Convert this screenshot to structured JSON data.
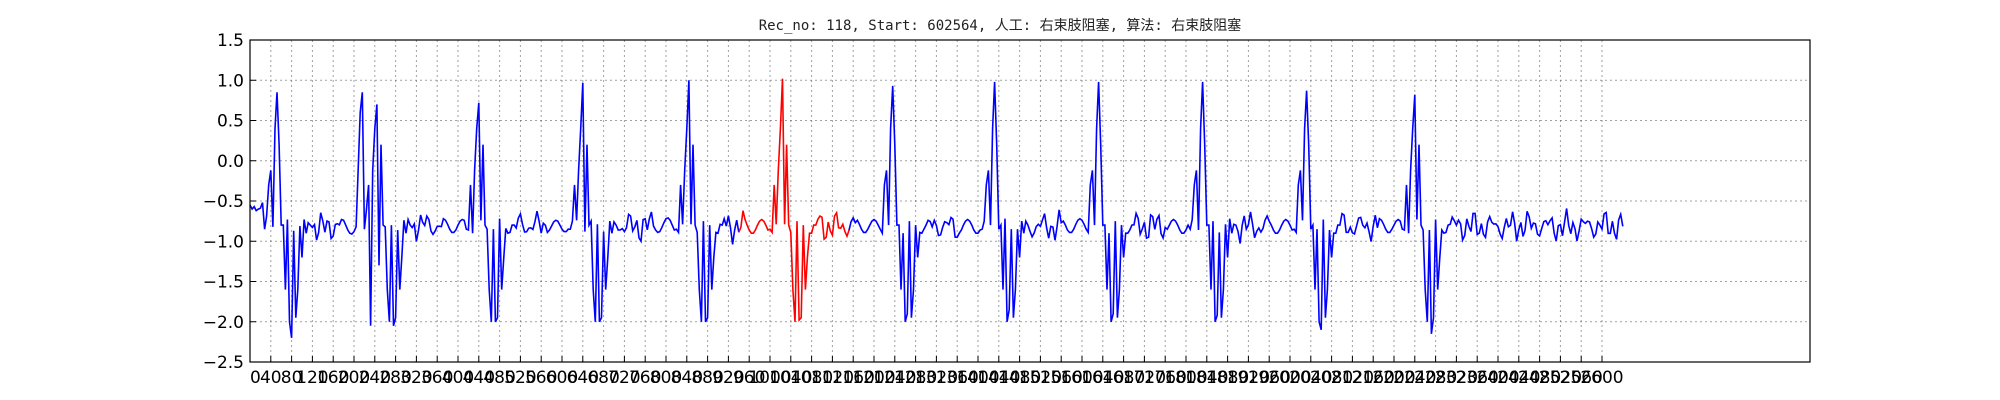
{
  "chart_data": {
    "type": "line",
    "title": "Rec_no: 118, Start: 602564, 人工: 右束肢阻塞, 算法: 右束肢阻塞",
    "xlabel": "",
    "ylabel": "",
    "xlim": [
      0,
      3000
    ],
    "ylim": [
      -2.5,
      1.5
    ],
    "grid": true,
    "yticks": [
      -2.5,
      -2.0,
      -1.5,
      -1.0,
      -0.5,
      0.0,
      0.5,
      1.0,
      1.5
    ],
    "ytick_labels": [
      "−2.5",
      "−2.0",
      "−1.5",
      "−1.0",
      "−0.5",
      "0.0",
      "0.5",
      "1.0",
      "1.5"
    ],
    "xticks": [
      0,
      40,
      80,
      120,
      160,
      200,
      240,
      280,
      320,
      360,
      400,
      440,
      480,
      520,
      560,
      600,
      640,
      680,
      720,
      760,
      800,
      840,
      880,
      920,
      960,
      1000,
      1040,
      1080,
      1120,
      1160,
      1200,
      1240,
      1280,
      1320,
      1360,
      1400,
      1440,
      1480,
      1520,
      1560,
      1600,
      1640,
      1680,
      1720,
      1760,
      1800,
      1840,
      1880,
      1920,
      1960,
      2000,
      2040,
      2080,
      2120,
      2160,
      2200,
      2240,
      2280,
      2320,
      2360,
      2400,
      2440,
      2480,
      2520,
      2560,
      2600
    ],
    "xtick_labels": [
      "0",
      "40",
      "80",
      "120",
      "160",
      "200",
      "240",
      "280",
      "320",
      "360",
      "400",
      "440",
      "480",
      "520",
      "560",
      "600",
      "640",
      "680",
      "720",
      "760",
      "800",
      "840",
      "880",
      "920",
      "960",
      "1000",
      "1040",
      "1080",
      "1120",
      "1160",
      "1200",
      "1240",
      "1280",
      "1320",
      "1360",
      "1400",
      "1440",
      "1480",
      "1520",
      "1560",
      "1600",
      "1640",
      "1680",
      "1720",
      "1760",
      "1800",
      "1840",
      "1880",
      "1920",
      "1960",
      "2000",
      "2040",
      "2080",
      "2120",
      "2160",
      "2200",
      "2240",
      "2280",
      "2320",
      "2360",
      "2400",
      "2440",
      "2480",
      "2520",
      "2560",
      "2600"
    ],
    "x_step": 4,
    "beats_x": [
      50,
      245,
      440,
      640,
      845,
      1025,
      1235,
      1430,
      1630,
      1830,
      2030,
      2240
    ],
    "highlight": {
      "x_range": [
        940,
        1150
      ],
      "color": "#ff0000"
    },
    "series": [
      {
        "color": "#0000ff",
        "values": [
          -0.55,
          -0.6,
          -0.57,
          -0.62,
          -0.6,
          -0.59,
          -0.52,
          -0.61,
          -0.69,
          -0.75,
          -0.79,
          -0.82,
          -0.84,
          -0.85,
          -0.84,
          -0.8,
          -0.75,
          -0.72,
          -0.73,
          -0.78,
          -0.83,
          -0.87,
          -0.88,
          -0.86,
          -0.81,
          -0.76,
          -0.73,
          -0.73,
          -0.77,
          -0.83,
          -0.88,
          -0.9,
          -0.88,
          -0.83,
          -0.78,
          -0.75,
          -0.76,
          -0.8,
          -0.85,
          -0.89,
          -0.89,
          -0.86,
          -0.8,
          -0.75,
          -0.73,
          -0.74,
          -0.8,
          -0.86,
          -0.9,
          -0.91,
          -0.88,
          -0.82,
          -0.1,
          0.6,
          0.85,
          0.35,
          -0.6,
          -1.5,
          -2.05,
          -2.2,
          -2.05,
          -1.7,
          -1.3,
          -1.05,
          -0.9,
          -0.82,
          -0.78,
          -0.78,
          -0.8,
          -0.84,
          -0.86,
          -0.86,
          -0.84,
          -0.79,
          -0.74,
          -0.72,
          -0.73,
          -0.78,
          -0.83,
          -0.87,
          -0.88,
          -0.84,
          -0.79,
          -0.74,
          -0.72,
          -0.73,
          -0.78,
          -0.84,
          -0.88,
          -0.89,
          -0.86,
          -0.8,
          -0.75,
          -0.72,
          -0.74,
          -0.79,
          -0.85,
          -0.89,
          -0.89,
          -0.86,
          -0.8,
          -0.75,
          -0.73,
          -0.74,
          -0.8,
          -0.86,
          -0.9,
          -0.9,
          -0.87,
          -0.81,
          -0.76,
          -0.74,
          -0.75,
          -0.8,
          -0.85,
          -0.88,
          -0.88,
          -0.85,
          -0.8,
          -0.75,
          -0.72,
          -0.73,
          -0.78,
          -0.84,
          -0.88,
          -0.89,
          -0.86,
          -0.8,
          -0.74,
          -0.71,
          -0.73,
          -0.78,
          -0.84,
          -0.88,
          -0.88,
          -0.85,
          -0.79,
          -0.74,
          -0.72,
          -0.73,
          -0.79,
          -0.85,
          -0.89,
          -0.89,
          -0.86,
          -0.81,
          -0.76,
          -0.74,
          -0.75,
          -0.8,
          -0.85,
          -0.88,
          -0.88,
          -0.85,
          -0.8,
          -0.75,
          -0.73,
          -0.74,
          -0.78,
          -0.84,
          -0.88,
          -0.88,
          -0.85,
          -0.8,
          -0.75,
          -0.73,
          -0.74,
          -0.79,
          -0.84,
          -0.88,
          -0.88,
          -0.84,
          -0.79,
          -0.75,
          -0.74,
          -0.76,
          -0.81,
          -0.86,
          -0.89,
          -0.88,
          -0.84,
          -0.78,
          -0.74,
          -0.73,
          -0.76,
          -0.82,
          -0.87,
          -0.9,
          -0.89,
          -0.84,
          -0.78,
          -0.73,
          -0.72,
          -0.75,
          -0.81,
          -0.86,
          -0.89,
          -0.88,
          -0.83,
          -0.77,
          -0.72,
          -0.71,
          -0.74,
          -0.8,
          -0.86,
          -0.89,
          -0.89,
          -0.85,
          -0.79,
          -0.74,
          -0.72,
          -0.74,
          -0.79,
          -0.85,
          -0.89,
          -0.89,
          -0.86,
          -0.8,
          -0.75,
          -0.73,
          -0.75,
          -0.8,
          -0.86,
          -0.89,
          -0.89,
          -0.85,
          -0.79,
          -0.74,
          -0.72,
          -0.74,
          -0.8,
          -0.86,
          -0.9,
          -0.9,
          -0.86,
          -0.8,
          -0.75,
          -0.73,
          -0.75,
          -0.8,
          -0.86,
          -0.9,
          -0.9,
          -0.86,
          -0.8,
          -0.75,
          -0.73,
          -0.75,
          -0.8,
          -0.86,
          -0.89,
          -0.89,
          -0.85,
          -0.79,
          -0.74,
          -0.72,
          -0.74,
          -0.79,
          -0.85,
          -0.89,
          -0.89,
          -0.85,
          -0.8,
          -0.75,
          -0.73,
          -0.75,
          -0.8,
          -0.86,
          -0.9,
          -0.9,
          -0.86,
          -0.8,
          -0.75,
          -0.73,
          -0.75,
          -0.8,
          -0.86,
          -0.9,
          -0.9,
          -0.86,
          -0.8,
          -0.75,
          -0.73,
          -0.75,
          -0.8,
          -0.86,
          -0.89,
          -0.89,
          -0.85,
          -0.79,
          -0.74,
          -0.72,
          -0.74,
          -0.79,
          -0.85,
          -0.89,
          -0.89,
          -0.85,
          -0.8,
          -0.75,
          -0.73,
          -0.75,
          -0.8,
          -0.86,
          -0.9,
          -0.9,
          -0.86,
          -0.8,
          -0.75,
          -0.73,
          -0.75,
          -0.8,
          -0.86,
          -0.9,
          -0.9,
          -0.86,
          -0.8,
          -0.75,
          -0.73,
          -0.75,
          -0.8,
          -0.86,
          -0.89,
          -0.89,
          -0.85,
          -0.79,
          -0.74,
          -0.72,
          -0.74,
          -0.79,
          -0.85,
          -0.89,
          -0.89,
          -0.85,
          -0.8,
          -0.75,
          -0.73,
          -0.75,
          -0.8,
          -0.86,
          -0.9,
          -0.9,
          -0.86,
          -0.8,
          -0.75,
          -0.73,
          -0.75,
          -0.8,
          -0.86,
          -0.9,
          -0.9,
          -0.86,
          -0.8,
          -0.75,
          -0.73,
          -0.75,
          -0.8,
          -0.86,
          -0.89,
          -0.89,
          -0.85,
          -0.79,
          -0.74,
          -0.72,
          -0.74,
          -0.79,
          -0.85,
          -0.89,
          -0.89,
          -0.85,
          -0.8,
          -0.75,
          -0.73,
          -0.75,
          -0.8,
          -0.86,
          -0.9,
          -0.9,
          -0.86,
          -0.8,
          -0.75,
          -0.73,
          -0.75,
          -0.8,
          -0.86,
          -0.9,
          -0.9,
          -0.86,
          -0.8,
          -0.75,
          -0.73,
          -0.75,
          -0.8,
          -0.86,
          -0.89,
          -0.89,
          -0.85,
          -0.79,
          -0.74,
          -0.72,
          -0.74,
          -0.79,
          -0.85,
          -0.89,
          -0.89,
          -0.85,
          -0.8,
          -0.75,
          -0.73,
          -0.75,
          -0.8,
          -0.86,
          -0.9,
          -0.9,
          -0.86,
          -0.8,
          -0.75,
          -0.73,
          -0.75,
          -0.8,
          -0.86,
          -0.9,
          -0.9,
          -0.86,
          -0.8,
          -0.75,
          -0.73,
          -0.75,
          -0.8,
          -0.86,
          -0.89,
          -0.89,
          -0.85,
          -0.79,
          -0.74,
          -0.72,
          -0.74,
          -0.79,
          -0.85,
          -0.89,
          -0.89,
          -0.85,
          -0.8,
          -0.75,
          -0.73,
          -0.75,
          -0.8,
          -0.86,
          -0.9,
          -0.9,
          -0.86,
          -0.8,
          -0.75,
          -0.73,
          -0.75,
          -0.8,
          -0.86,
          -0.9,
          -0.9,
          -0.86,
          -0.8,
          -0.75,
          -0.73,
          -0.75,
          -0.8,
          -0.86,
          -0.89,
          -0.89,
          -0.85,
          -0.79,
          -0.74,
          -0.72,
          -0.74,
          -0.79,
          -0.85,
          -0.89,
          -0.89,
          -0.85,
          -0.8,
          -0.75,
          -0.73,
          -0.75,
          -0.8,
          -0.86,
          -0.9,
          -0.9,
          -0.86,
          -0.8,
          -0.75,
          -0.73,
          -0.75,
          -0.8,
          -0.86,
          -0.9,
          -0.9,
          -0.86,
          -0.8,
          -0.75,
          -0.73,
          -0.75,
          -0.8,
          -0.86,
          -0.89,
          -0.89,
          -0.85,
          -0.79,
          -0.74,
          -0.72,
          -0.74,
          -0.79,
          -0.85,
          -0.89,
          -0.89,
          -0.85,
          -0.8,
          -0.75,
          -0.73,
          -0.75,
          -0.8,
          -0.86,
          -0.9,
          -0.9,
          -0.86,
          -0.8,
          -0.75,
          -0.73,
          -0.75,
          -0.8,
          -0.86,
          -0.9,
          -0.9,
          -0.86,
          -0.8,
          -0.75,
          -0.73,
          -0.75,
          -0.8,
          -0.86,
          -0.89,
          -0.89,
          -0.85,
          -0.79,
          -0.74,
          -0.72,
          -0.74,
          -0.79,
          -0.85,
          -0.89,
          -0.89,
          -0.85,
          -0.8,
          -0.75,
          -0.73,
          -0.75,
          -0.8,
          -0.86,
          -0.9,
          -0.9,
          -0.86,
          -0.8,
          -0.75,
          -0.73,
          -0.75,
          -0.8,
          -0.86,
          -0.9,
          -0.9,
          -0.86,
          -0.8,
          -0.75,
          -0.73,
          -0.75,
          -0.8,
          -0.86,
          -0.89,
          -0.89,
          -0.85,
          -0.79,
          -0.74,
          -0.72,
          -0.74,
          -0.79,
          -0.85,
          -0.89,
          -0.89,
          -0.85,
          -0.8,
          -0.75,
          -0.73,
          -0.75,
          -0.8,
          -0.86,
          -0.9,
          -0.9,
          -0.86,
          -0.8,
          -0.75,
          -0.73,
          -0.75,
          -0.8,
          -0.86,
          -0.9,
          -0.9,
          -0.86,
          -0.8,
          -0.75,
          -0.73,
          -0.75,
          -0.8,
          -0.86,
          -0.89,
          -0.89,
          -0.85,
          -0.79,
          -0.74,
          -0.72,
          -0.74,
          -0.79,
          -0.85,
          -0.89,
          -0.89,
          -0.85,
          -0.8,
          -0.75,
          -0.73,
          -0.75,
          -0.8,
          -0.86,
          -0.9,
          -0.9,
          -0.86,
          -0.8,
          -0.75,
          -0.73,
          -0.75,
          -0.8,
          -0.86,
          -0.9,
          -0.9,
          -0.86,
          -0.8,
          -0.75,
          -0.73,
          -0.75,
          -0.8,
          -0.86,
          -0.89,
          -0.89,
          -0.85,
          -0.79,
          -0.74,
          -0.72,
          -0.74,
          -0.79,
          -0.85,
          -0.89,
          -0.89,
          -0.85,
          -0.8,
          -0.75,
          -0.73,
          -0.75,
          -0.8,
          -0.86,
          -0.9,
          -0.9,
          -0.86,
          -0.8,
          -0.75,
          -0.73,
          -0.75,
          -0.8,
          -0.86,
          -0.9,
          -0.9,
          -0.86,
          -0.8,
          -0.75,
          -0.73,
          -0.75,
          -0.8,
          -0.86,
          -0.89,
          -0.89,
          -0.85,
          -0.79,
          -0.74,
          -0.72,
          -0.74,
          -0.79,
          -0.85,
          -0.89,
          -0.89,
          -0.85,
          -0.8,
          -0.75,
          -0.73,
          -0.75,
          -0.8,
          -0.86,
          -0.9,
          -0.9,
          -0.86,
          -0.8,
          -0.75,
          -0.73,
          -0.75,
          -0.8,
          -0.86,
          -0.9,
          -0.9,
          -0.86,
          -0.8,
          -0.75,
          -0.73,
          -0.75,
          -0.8,
          -0.86,
          -0.89,
          -0.89,
          -0.85,
          -0.79,
          -0.74,
          -0.72,
          -0.74,
          -0.79,
          -0.85,
          -0.89,
          -0.89,
          -0.85,
          -0.8,
          -0.75,
          -0.73,
          -0.75,
          -0.8,
          -0.86,
          -0.9,
          -0.9,
          -0.86,
          -0.8,
          -0.75,
          -0.73,
          -0.75,
          -0.8,
          -0.86,
          -0.9,
          -0.9,
          -0.86,
          -0.8,
          -0.75,
          -0.73,
          -0.75,
          -0.8,
          -0.86,
          -0.89,
          -0.89,
          -0.85,
          -0.79,
          -0.74,
          -0.72,
          -0.74,
          -0.79
        ]
      }
    ]
  }
}
